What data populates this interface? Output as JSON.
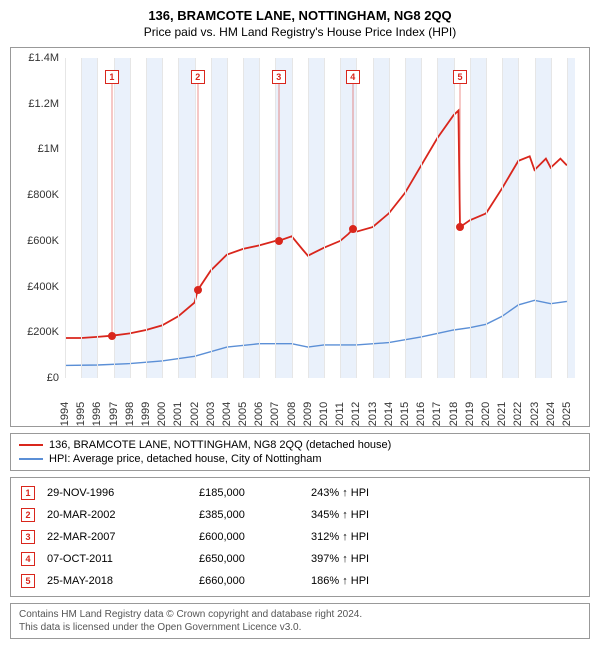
{
  "title": "136, BRAMCOTE LANE, NOTTINGHAM, NG8 2QQ",
  "subtitle": "Price paid vs. HM Land Registry's House Price Index (HPI)",
  "chart": {
    "type": "line",
    "xlim": [
      1994,
      2025.5
    ],
    "ylim": [
      0,
      1400000
    ],
    "ytick_step": 200000,
    "xtick_step": 1,
    "years": [
      1994,
      1995,
      1996,
      1997,
      1998,
      1999,
      2000,
      2001,
      2002,
      2003,
      2004,
      2005,
      2006,
      2007,
      2008,
      2009,
      2010,
      2011,
      2012,
      2013,
      2014,
      2015,
      2016,
      2017,
      2018,
      2019,
      2020,
      2021,
      2022,
      2023,
      2024,
      2025
    ],
    "y_labels": [
      "£0",
      "£200K",
      "£400K",
      "£600K",
      "£800K",
      "£1M",
      "£1.2M",
      "£1.4M"
    ],
    "series": {
      "property": {
        "label": "136, BRAMCOTE LANE, NOTTINGHAM, NG8 2QQ (detached house)",
        "color": "#d9261c",
        "width": 1.8,
        "points": [
          [
            1994,
            175000
          ],
          [
            1995,
            175000
          ],
          [
            1996,
            180000
          ],
          [
            1996.9,
            185000
          ],
          [
            1998,
            195000
          ],
          [
            1999,
            210000
          ],
          [
            2000,
            230000
          ],
          [
            2001,
            270000
          ],
          [
            2002,
            330000
          ],
          [
            2002.2,
            385000
          ],
          [
            2003,
            470000
          ],
          [
            2004,
            540000
          ],
          [
            2005,
            565000
          ],
          [
            2006,
            580000
          ],
          [
            2007,
            600000
          ],
          [
            2007.2,
            600000
          ],
          [
            2008,
            620000
          ],
          [
            2008.7,
            560000
          ],
          [
            2009,
            535000
          ],
          [
            2010,
            570000
          ],
          [
            2011,
            600000
          ],
          [
            2011.5,
            630000
          ],
          [
            2011.77,
            650000
          ],
          [
            2012,
            640000
          ],
          [
            2013,
            660000
          ],
          [
            2014,
            720000
          ],
          [
            2015,
            810000
          ],
          [
            2016,
            930000
          ],
          [
            2017,
            1050000
          ],
          [
            2018,
            1150000
          ],
          [
            2018.3,
            1170000
          ],
          [
            2018.4,
            660000
          ],
          [
            2019,
            690000
          ],
          [
            2020,
            720000
          ],
          [
            2021,
            830000
          ],
          [
            2022,
            950000
          ],
          [
            2022.7,
            970000
          ],
          [
            2023,
            910000
          ],
          [
            2023.7,
            960000
          ],
          [
            2024,
            920000
          ],
          [
            2024.6,
            960000
          ],
          [
            2025,
            930000
          ]
        ]
      },
      "hpi": {
        "label": "HPI: Average price, detached house, City of Nottingham",
        "color": "#5b8fd6",
        "width": 1.4,
        "points": [
          [
            1994,
            55000
          ],
          [
            1996,
            57000
          ],
          [
            1998,
            63000
          ],
          [
            2000,
            75000
          ],
          [
            2002,
            95000
          ],
          [
            2004,
            135000
          ],
          [
            2006,
            150000
          ],
          [
            2008,
            150000
          ],
          [
            2009,
            135000
          ],
          [
            2010,
            145000
          ],
          [
            2012,
            145000
          ],
          [
            2014,
            155000
          ],
          [
            2016,
            180000
          ],
          [
            2018,
            210000
          ],
          [
            2019,
            220000
          ],
          [
            2020,
            235000
          ],
          [
            2021,
            270000
          ],
          [
            2022,
            320000
          ],
          [
            2023,
            340000
          ],
          [
            2024,
            325000
          ],
          [
            2025,
            335000
          ]
        ]
      }
    },
    "sales_markers": [
      {
        "n": 1,
        "year": 1996.9,
        "value": 185000
      },
      {
        "n": 2,
        "year": 2002.2,
        "value": 385000
      },
      {
        "n": 3,
        "year": 2007.2,
        "value": 600000
      },
      {
        "n": 4,
        "year": 2011.77,
        "value": 650000
      },
      {
        "n": 5,
        "year": 2018.4,
        "value": 660000
      }
    ],
    "grid_color": "#e6e6e6",
    "shade_color": "#eaf1fb",
    "background_color": "#ffffff",
    "axis_font_size": 11
  },
  "legend": [
    {
      "color": "#d9261c",
      "label": "136, BRAMCOTE LANE, NOTTINGHAM, NG8 2QQ (detached house)"
    },
    {
      "color": "#5b8fd6",
      "label": "HPI: Average price, detached house, City of Nottingham"
    }
  ],
  "sales": [
    {
      "n": "1",
      "date": "29-NOV-1996",
      "price": "£185,000",
      "pct": "243% ↑ HPI"
    },
    {
      "n": "2",
      "date": "20-MAR-2002",
      "price": "£385,000",
      "pct": "345% ↑ HPI"
    },
    {
      "n": "3",
      "date": "22-MAR-2007",
      "price": "£600,000",
      "pct": "312% ↑ HPI"
    },
    {
      "n": "4",
      "date": "07-OCT-2011",
      "price": "£650,000",
      "pct": "397% ↑ HPI"
    },
    {
      "n": "5",
      "date": "25-MAY-2018",
      "price": "£660,000",
      "pct": "186% ↑ HPI"
    }
  ],
  "footer": {
    "line1": "Contains HM Land Registry data © Crown copyright and database right 2024.",
    "line2": "This data is licensed under the Open Government Licence v3.0."
  }
}
